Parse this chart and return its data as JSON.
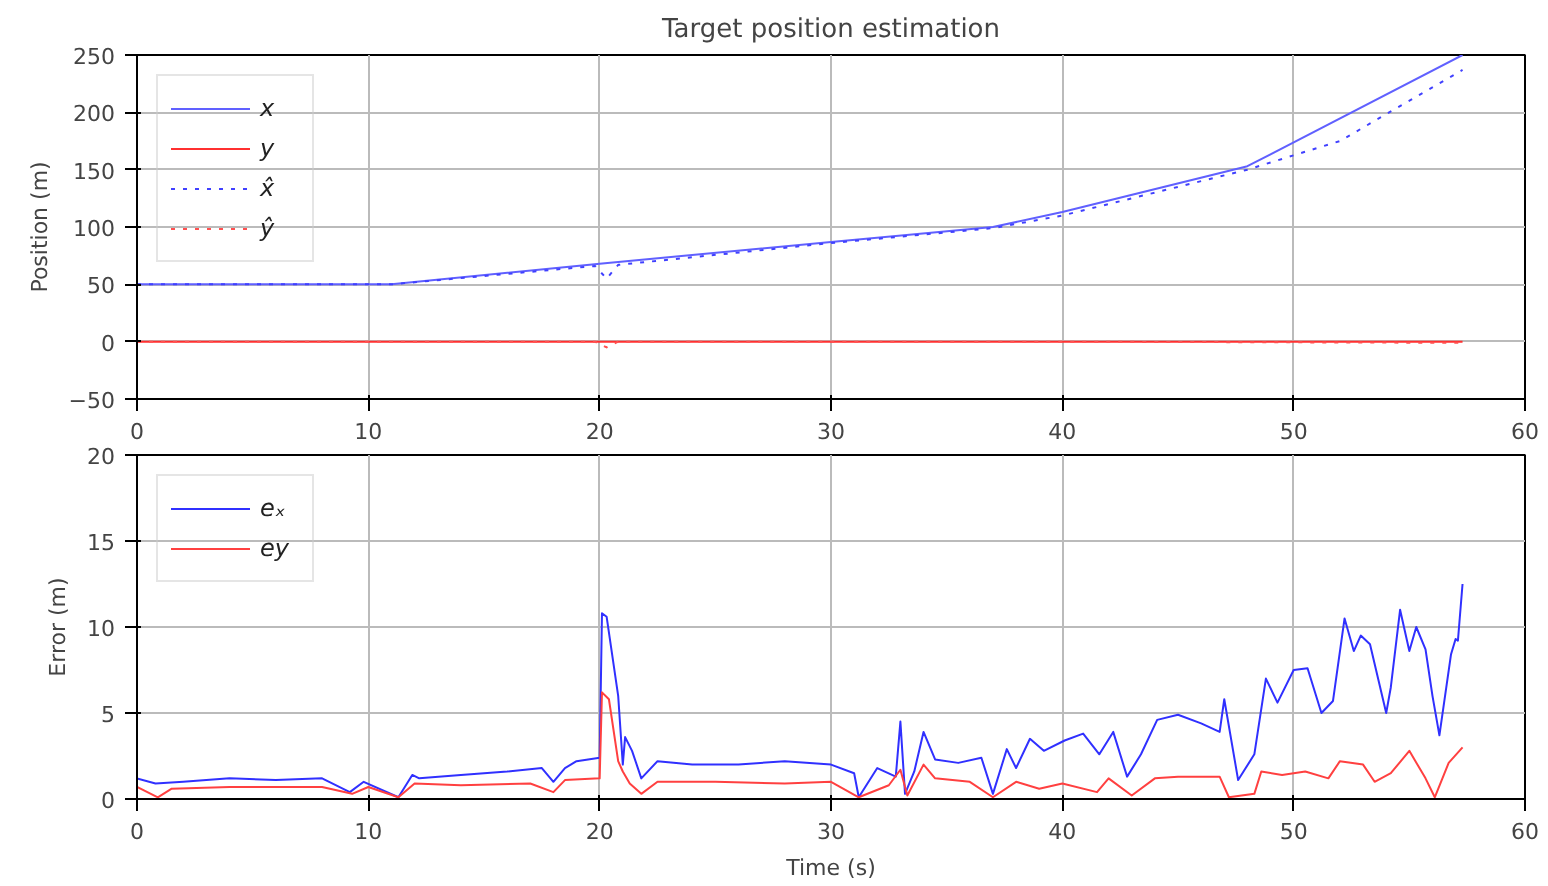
{
  "chart_data": [
    {
      "type": "line",
      "title": "Target position estimation",
      "ylabel": "Position (m)",
      "xlim": [
        0,
        60
      ],
      "xticks": [
        0,
        10,
        20,
        30,
        40,
        50,
        60
      ],
      "ylim": [
        -50,
        250
      ],
      "yticks": [
        -50,
        0,
        50,
        100,
        150,
        200,
        250
      ],
      "grid": true,
      "legend": "top left",
      "series": [
        {
          "name": "x",
          "color": "#6060ff",
          "line_style": "solid",
          "x": [
            0,
            11,
            20,
            30,
            37,
            40,
            48,
            57.3
          ],
          "values": [
            50,
            50,
            68,
            87,
            100,
            113,
            153,
            250
          ]
        },
        {
          "name": "y",
          "color": "#ff3030",
          "line_style": "solid",
          "x": [
            0,
            20,
            40,
            57.3
          ],
          "values": [
            0,
            0,
            0,
            0
          ]
        },
        {
          "name": "x̂",
          "color": "#4040ff",
          "line_style": "dotted",
          "x": [
            0,
            11,
            19.8,
            20.3,
            20.8,
            30,
            37,
            40,
            48,
            52,
            57.3
          ],
          "values": [
            50,
            50,
            66,
            55,
            67,
            86,
            99,
            110,
            150,
            175,
            237
          ]
        },
        {
          "name": "ŷ",
          "color": "#ff5050",
          "line_style": "dotted",
          "x": [
            0,
            19.8,
            20.3,
            20.8,
            40,
            57.3
          ],
          "values": [
            0,
            0,
            -5,
            0,
            0,
            -1
          ]
        }
      ]
    },
    {
      "type": "line",
      "xlabel": "Time (s)",
      "ylabel": "Error (m)",
      "xlim": [
        0,
        60
      ],
      "xticks": [
        0,
        10,
        20,
        30,
        40,
        50,
        60
      ],
      "ylim": [
        0,
        20
      ],
      "yticks": [
        0,
        5,
        10,
        15,
        20
      ],
      "grid": true,
      "legend": "top left",
      "series": [
        {
          "name": "eₓ",
          "color": "#3030ff",
          "line_style": "solid",
          "x": [
            0,
            0.8,
            2,
            4,
            6,
            8,
            9.2,
            9.8,
            11.3,
            11.9,
            12.2,
            14,
            16,
            17.5,
            18,
            18.5,
            19,
            20,
            20.1,
            20.3,
            20.8,
            21,
            21.1,
            21.4,
            21.8,
            22.5,
            24,
            26,
            28,
            30,
            31.0,
            31.2,
            32,
            32.8,
            33.0,
            33.2,
            33.6,
            34.0,
            34.5,
            35.5,
            36.5,
            37.0,
            37.6,
            38.0,
            38.6,
            39.2,
            40.1,
            40.9,
            41.6,
            42.2,
            42.8,
            43.4,
            44.1,
            45.0,
            46.0,
            46.8,
            47.0,
            47.6,
            48.3,
            48.8,
            49.3,
            50.0,
            50.6,
            51.2,
            51.7,
            52.2,
            52.6,
            52.9,
            53.3,
            54.0,
            54.2,
            54.6,
            55.0,
            55.3,
            55.7,
            56.0,
            56.3,
            56.8,
            57.0,
            57.1,
            57.3
          ],
          "values": [
            1.2,
            0.9,
            1.0,
            1.2,
            1.1,
            1.2,
            0.4,
            1.0,
            0.1,
            1.4,
            1.2,
            1.4,
            1.6,
            1.8,
            1.0,
            1.8,
            2.2,
            2.4,
            10.8,
            10.6,
            6,
            2,
            3.6,
            2.8,
            1.2,
            2.2,
            2.0,
            2.0,
            2.2,
            2.0,
            1.5,
            0.1,
            1.8,
            1.3,
            4.5,
            0.3,
            1.6,
            3.9,
            2.3,
            2.1,
            2.4,
            0.3,
            2.9,
            1.8,
            3.5,
            2.8,
            3.4,
            3.8,
            2.6,
            3.9,
            1.3,
            2.6,
            4.6,
            4.9,
            4.4,
            3.9,
            5.8,
            1.1,
            2.6,
            7.0,
            5.6,
            7.5,
            7.6,
            5.0,
            5.7,
            10.5,
            8.6,
            9.5,
            9.0,
            5.0,
            6.5,
            11.0,
            8.6,
            10.0,
            8.7,
            6.0,
            3.7,
            8.4,
            9.3,
            9.2,
            12.5
          ]
        },
        {
          "name": "ey",
          "color": "#ff4040",
          "line_style": "solid",
          "x": [
            0,
            0.9,
            1.5,
            4,
            8,
            9.3,
            10,
            11.3,
            12,
            14,
            17,
            18,
            18.5,
            20,
            20.1,
            20.4,
            20.8,
            21,
            21.3,
            21.8,
            22.5,
            25,
            28,
            30,
            31.2,
            32.5,
            33,
            33.3,
            34,
            34.5,
            36,
            37,
            38,
            39,
            40,
            41.5,
            42,
            43,
            44,
            45,
            46.8,
            47.2,
            48.3,
            48.6,
            49.5,
            50.5,
            51.5,
            52,
            53,
            53.5,
            54.2,
            55,
            55.7,
            56.1,
            56.7,
            57.3
          ],
          "values": [
            0.7,
            0.1,
            0.6,
            0.7,
            0.7,
            0.3,
            0.7,
            0.1,
            0.9,
            0.8,
            0.9,
            0.4,
            1.1,
            1.2,
            6.2,
            5.8,
            2.2,
            1.6,
            0.9,
            0.3,
            1.0,
            1.0,
            0.9,
            1.0,
            0.1,
            0.8,
            1.7,
            0.2,
            2.0,
            1.2,
            1.0,
            0.1,
            1.0,
            0.6,
            0.9,
            0.4,
            1.2,
            0.2,
            1.2,
            1.3,
            1.3,
            0.1,
            0.3,
            1.6,
            1.4,
            1.6,
            1.2,
            2.2,
            2.0,
            1.0,
            1.5,
            2.8,
            1.2,
            0.1,
            2.1,
            3.0
          ]
        }
      ]
    }
  ]
}
